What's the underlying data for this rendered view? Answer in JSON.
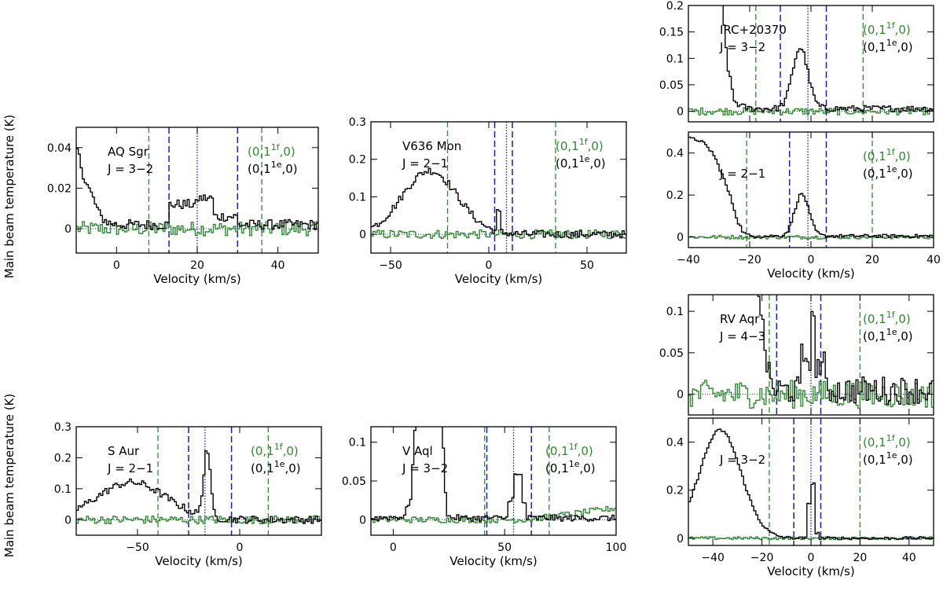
{
  "ylabel": "Main beam temperature (K)",
  "xlabel": "Velocity (km/s)",
  "colors": {
    "hcn": "#000000",
    "vib": "#2e8b2e",
    "blue": "#1a1acc",
    "green": "#2e8b2e"
  },
  "chart_data": [
    {
      "id": "aq-sgr",
      "type": "step",
      "star": "AQ Sgr",
      "transition": "J = 3−2",
      "xlim": [
        -10,
        50
      ],
      "ylim": [
        -0.012,
        0.05
      ],
      "xticks": [
        0,
        20,
        40
      ],
      "yticks": [
        0,
        0.02,
        0.04
      ],
      "xticklabels": [
        "0",
        "20",
        "40"
      ],
      "yticklabels": [
        "0",
        "0.02",
        "0.04"
      ],
      "show_xlabel": true,
      "show_xticklabels": true,
      "legend_y": 0.033,
      "vlines": {
        "green": [
          8,
          36
        ],
        "blue_dash": [
          13,
          30
        ],
        "blue_dot": [
          20
        ]
      },
      "series": [
        {
          "color": "black",
          "feature": [
            [
              -10.5,
              0.045
            ],
            [
              -8,
              0.025
            ],
            [
              -6,
              0.016
            ],
            [
              -4,
              0.006
            ],
            [
              -2,
              0.003
            ],
            [
              0,
              0.002
            ]
          ],
          "noise": 0.0025,
          "baseline": 0.0,
          "hump": [
            [
              13,
              20,
              0.01
            ],
            [
              20,
              24,
              0.013
            ],
            [
              24,
              30,
              0.004
            ]
          ]
        },
        {
          "color": "green",
          "noise": 0.0035
        }
      ]
    },
    {
      "id": "v636-mon",
      "type": "step",
      "star": "V636 Mon",
      "transition": "J = 2−1",
      "xlim": [
        -60,
        70
      ],
      "ylim": [
        -0.05,
        0.3
      ],
      "xticks": [
        -50,
        0,
        50
      ],
      "yticks": [
        0,
        0.1,
        0.2,
        0.3
      ],
      "xticklabels": [
        "−50",
        "0",
        "50"
      ],
      "yticklabels": [
        "0",
        "0.1",
        "0.2",
        "0.3"
      ],
      "show_xlabel": true,
      "show_xticklabels": true,
      "legend_y": 0.21,
      "vlines": {
        "green": [
          -21,
          34
        ],
        "blue_dash": [
          3,
          12
        ],
        "blue_dot": [
          9
        ]
      },
      "series": [
        {
          "color": "black",
          "gauss": [
            -30,
            14,
            0.17
          ],
          "noise": 0.01,
          "spike": [
            [
              5,
              0.05
            ]
          ]
        },
        {
          "color": "green",
          "noise": 0.012
        }
      ]
    },
    {
      "id": "irc-32",
      "type": "step",
      "star": "IRC+20370",
      "transition": "J = 3−2",
      "xlim": [
        -40,
        40
      ],
      "ylim": [
        -0.02,
        0.2
      ],
      "xticks": [
        -40,
        -20,
        0,
        20,
        40
      ],
      "yticks": [
        0,
        0.05,
        0.1,
        0.15,
        0.2
      ],
      "xticklabels": [],
      "yticklabels": [
        "0",
        "0.05",
        "0.1",
        "0.15",
        "0.2"
      ],
      "show_xlabel": false,
      "show_xticklabels": false,
      "legend_y": 0.14,
      "vlines": {
        "green": [
          -18,
          17
        ],
        "blue_dash": [
          -10,
          5
        ],
        "blue_dot": [
          -1
        ]
      },
      "series": [
        {
          "color": "black",
          "feature": [
            [
              -40,
              0.25
            ],
            [
              -32,
              0.25
            ],
            [
              -29,
              0.2
            ],
            [
              -27,
              0.08
            ],
            [
              -25,
              0.02
            ],
            [
              -23,
              0.01
            ],
            [
              -20,
              0.005
            ]
          ],
          "noise": 0.006,
          "gauss": [
            -3.5,
            2.5,
            0.115
          ]
        },
        {
          "color": "green",
          "noise": 0.007
        }
      ]
    },
    {
      "id": "irc-21",
      "type": "step",
      "star": "",
      "transition": "J = 2−1",
      "xlim": [
        -40,
        40
      ],
      "ylim": [
        -0.05,
        0.5
      ],
      "xticks": [
        -40,
        -20,
        0,
        20,
        40
      ],
      "yticks": [
        0,
        0.2,
        0.4
      ],
      "xticklabels": [
        "−40",
        "−20",
        "0",
        "20",
        "40"
      ],
      "yticklabels": [
        "0",
        "0.2",
        "0.4"
      ],
      "show_xlabel": true,
      "show_xticklabels": true,
      "legend_y": 0.37,
      "vlines": {
        "green": [
          -21,
          20
        ],
        "blue_dash": [
          -7,
          5
        ],
        "blue_dot": [
          -1
        ]
      },
      "series": [
        {
          "color": "black",
          "feature": [
            [
              -40,
              0.47
            ],
            [
              -36,
              0.46
            ],
            [
              -32,
              0.4
            ],
            [
              -29,
              0.3
            ],
            [
              -26,
              0.18
            ],
            [
              -24,
              0.08
            ],
            [
              -22,
              0.02
            ],
            [
              -20,
              0.005
            ]
          ],
          "noise": 0.008,
          "gauss": [
            -3,
            2.3,
            0.2
          ]
        },
        {
          "color": "green",
          "noise": 0.009
        }
      ]
    },
    {
      "id": "s-aur",
      "type": "step",
      "star": "S Aur",
      "transition": "J = 2−1",
      "xlim": [
        -80,
        40
      ],
      "ylim": [
        -0.05,
        0.3
      ],
      "xticks": [
        -50,
        0
      ],
      "yticks": [
        0,
        0.1,
        0.2,
        0.3
      ],
      "xticklabels": [
        "−50",
        "0"
      ],
      "yticklabels": [
        "0",
        "0.1",
        "0.2",
        "0.3"
      ],
      "show_xlabel": true,
      "show_xticklabels": true,
      "legend_y": 0.2,
      "vlines": {
        "green": [
          -40,
          14
        ],
        "blue_dash": [
          -25,
          -4
        ],
        "blue_dot": [
          -17
        ]
      },
      "series": [
        {
          "color": "black",
          "gauss": [
            -53,
            17,
            0.12
          ],
          "noise": 0.012,
          "gauss2": [
            -16,
            1.6,
            0.22
          ]
        },
        {
          "color": "green",
          "noise": 0.013
        }
      ]
    },
    {
      "id": "v-aql",
      "type": "step",
      "star": "V Aql",
      "transition": "J = 3−2",
      "xlim": [
        -10,
        100
      ],
      "ylim": [
        -0.02,
        0.12
      ],
      "xticks": [
        0,
        50,
        100
      ],
      "yticks": [
        0,
        0.05,
        0.1
      ],
      "xticklabels": [
        "0",
        "50",
        "100"
      ],
      "yticklabels": [
        "0",
        "0.05",
        "0.1"
      ],
      "show_xlabel": true,
      "show_xticklabels": true,
      "legend_y": 0.082,
      "vlines": {
        "green": [
          41,
          70
        ],
        "blue_dash": [
          42,
          62
        ],
        "blue_dot": [
          54
        ]
      },
      "series": [
        {
          "color": "black",
          "feature": [
            [
              -10,
              0.002
            ],
            [
              5,
              0.004
            ],
            [
              8,
              0.03
            ],
            [
              10,
              0.13
            ],
            [
              20,
              0.13
            ],
            [
              22,
              0.13
            ],
            [
              24,
              0.004
            ],
            [
              30,
              0.002
            ]
          ],
          "noise": 0.004,
          "hump": [
            [
              51,
              54,
              0.025
            ],
            [
              54,
              58,
              0.055
            ],
            [
              58,
              60,
              0.02
            ]
          ]
        },
        {
          "color": "green",
          "noise": 0.004,
          "ramp": [
            [
              60,
              0.0
            ],
            [
              100,
              0.015
            ]
          ]
        }
      ]
    },
    {
      "id": "rv-aqr-43",
      "type": "step",
      "star": "RV Aqr",
      "transition": "J = 4−3",
      "xlim": [
        -50,
        50
      ],
      "ylim": [
        -0.025,
        0.12
      ],
      "xticks": [
        -40,
        -20,
        0,
        20,
        40
      ],
      "yticks": [
        0,
        0.05,
        0.1
      ],
      "xticklabels": [],
      "yticklabels": [
        "0",
        "0.05",
        "0.1"
      ],
      "show_xlabel": false,
      "show_xticklabels": false,
      "legend_y": 0.085,
      "vlines": {
        "green": [
          -17,
          20
        ],
        "blue_dash": [
          -14,
          4
        ],
        "blue_dot": [
          0
        ]
      },
      "series": [
        {
          "color": "black",
          "feature": [
            [
              -50,
              0.16
            ],
            [
              -23,
              0.16
            ],
            [
              -21,
              0.12
            ],
            [
              -19,
              0.06
            ],
            [
              -17,
              0.02
            ],
            [
              -15,
              0.005
            ]
          ],
          "noise": 0.017,
          "hump": [
            [
              -4,
              0,
              0.04
            ],
            [
              0,
              2,
              0.08
            ],
            [
              2,
              6,
              0.03
            ]
          ]
        },
        {
          "color": "green",
          "noise": 0.017
        }
      ]
    },
    {
      "id": "rv-aqr-32",
      "type": "step",
      "star": "",
      "transition": "J = 3−2",
      "xlim": [
        -50,
        50
      ],
      "ylim": [
        -0.03,
        0.5
      ],
      "xticks": [
        -40,
        -20,
        0,
        20,
        40
      ],
      "yticks": [
        0,
        0.2,
        0.4
      ],
      "xticklabels": [
        "−40",
        "−20",
        "0",
        "20",
        "40"
      ],
      "yticklabels": [
        "0",
        "0.2",
        "0.4"
      ],
      "show_xlabel": true,
      "show_xticklabels": true,
      "legend_y": 0.37,
      "vlines": {
        "green": [
          -17,
          20
        ],
        "blue_dash": [
          -7,
          4
        ],
        "blue_dot": [
          0
        ]
      },
      "series": [
        {
          "color": "black",
          "gauss": [
            -37,
            8.5,
            0.45
          ],
          "noise": 0.006,
          "hump": [
            [
              -2,
              0,
              0.14
            ],
            [
              0,
              2,
              0.23
            ],
            [
              2,
              3,
              0.02
            ]
          ]
        },
        {
          "color": "green",
          "noise": 0.006
        }
      ]
    }
  ],
  "legend": {
    "vib_label": {
      "main": "(0,1",
      "sup": "1f",
      "end": ",0)"
    },
    "gs_label": {
      "main": "(0,1",
      "sup": "1e",
      "end": ",0)"
    }
  }
}
